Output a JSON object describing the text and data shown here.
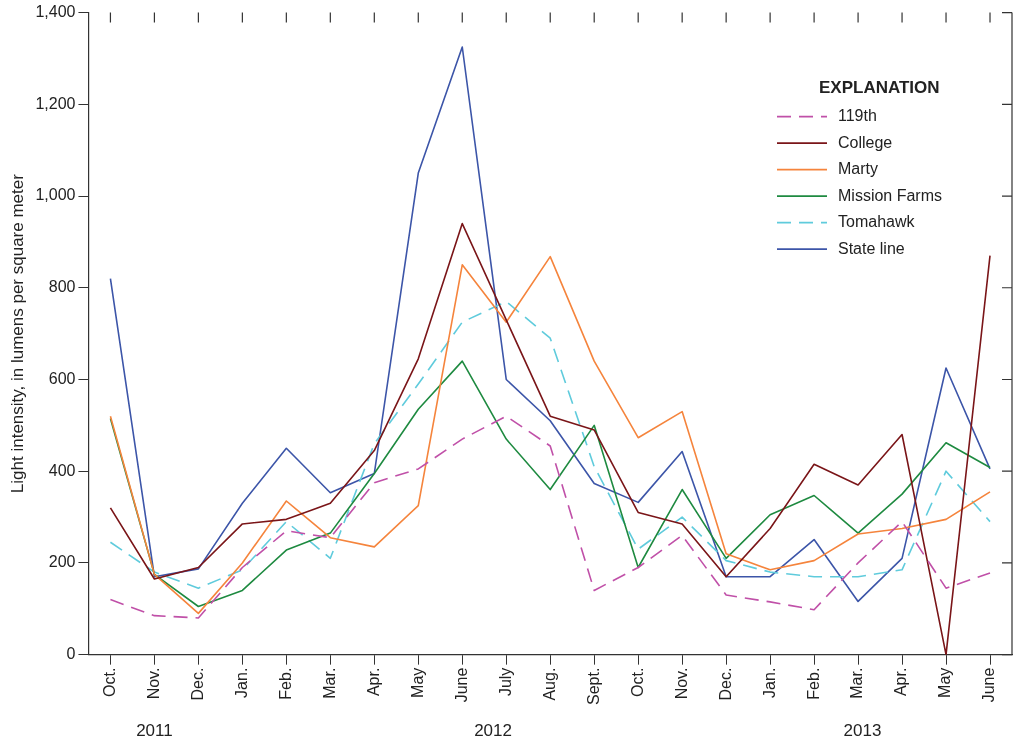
{
  "chart_data": {
    "type": "line",
    "ylabel": "Light intensity, in lumens per square meter",
    "legend_title": "EXPLANATION",
    "legend": "top right",
    "grid": false,
    "marker": "none",
    "categories": [
      "Oct.",
      "Nov.",
      "Dec.",
      "Jan.",
      "Feb.",
      "Mar.",
      "Apr.",
      "May",
      "June",
      "July",
      "Aug.",
      "Sept.",
      "Oct.",
      "Nov.",
      "Dec.",
      "Jan.",
      "Feb.",
      "Mar.",
      "Apr.",
      "May",
      "June"
    ],
    "ylim": [
      0,
      1400
    ],
    "yticks": [
      0,
      {
        "value": 200,
        "label": "200"
      },
      {
        "value": 400,
        "label": "400"
      },
      {
        "value": 600,
        "label": "600"
      },
      {
        "value": 800,
        "label": "800"
      },
      {
        "value": 1000,
        "label": "1,000"
      },
      {
        "value": 1200,
        "label": "1,200"
      },
      {
        "value": 1400,
        "label": "1,400"
      }
    ],
    "annotations": [
      "2011",
      "2012",
      "2013"
    ],
    "series": [
      {
        "name": "119th",
        "color": "#c050a8",
        "line_style": "dashed",
        "values": [
          120,
          85,
          80,
          190,
          270,
          255,
          375,
          405,
          470,
          520,
          455,
          140,
          190,
          260,
          130,
          115,
          98,
          200,
          290,
          145,
          178
        ]
      },
      {
        "name": "College",
        "color": "#7a1518",
        "line_style": "solid",
        "values": [
          320,
          165,
          190,
          285,
          295,
          330,
          445,
          645,
          940,
          730,
          520,
          490,
          310,
          285,
          170,
          275,
          415,
          370,
          480,
          0,
          870
        ]
      },
      {
        "name": "Marty",
        "color": "#f5843c",
        "line_style": "solid",
        "values": [
          520,
          175,
          90,
          200,
          335,
          255,
          235,
          325,
          850,
          725,
          868,
          640,
          473,
          530,
          220,
          185,
          205,
          263,
          275,
          295,
          355
        ]
      },
      {
        "name": "Mission Farms",
        "color": "#1e8a40",
        "line_style": "solid",
        "values": [
          515,
          175,
          105,
          140,
          228,
          265,
          395,
          535,
          640,
          470,
          360,
          500,
          190,
          360,
          210,
          305,
          347,
          265,
          350,
          462,
          408
        ]
      },
      {
        "name": "Tomahawk",
        "color": "#5fcbdc",
        "line_style": "dashed",
        "values": [
          245,
          180,
          145,
          185,
          290,
          210,
          460,
          590,
          725,
          770,
          690,
          410,
          230,
          300,
          205,
          180,
          170,
          170,
          185,
          400,
          290
        ]
      },
      {
        "name": "State line",
        "color": "#3c55a8",
        "line_style": "solid",
        "values": [
          820,
          170,
          187,
          330,
          450,
          353,
          395,
          1050,
          1325,
          600,
          510,
          373,
          332,
          443,
          170,
          170,
          251,
          116,
          210,
          625,
          405
        ]
      }
    ]
  }
}
